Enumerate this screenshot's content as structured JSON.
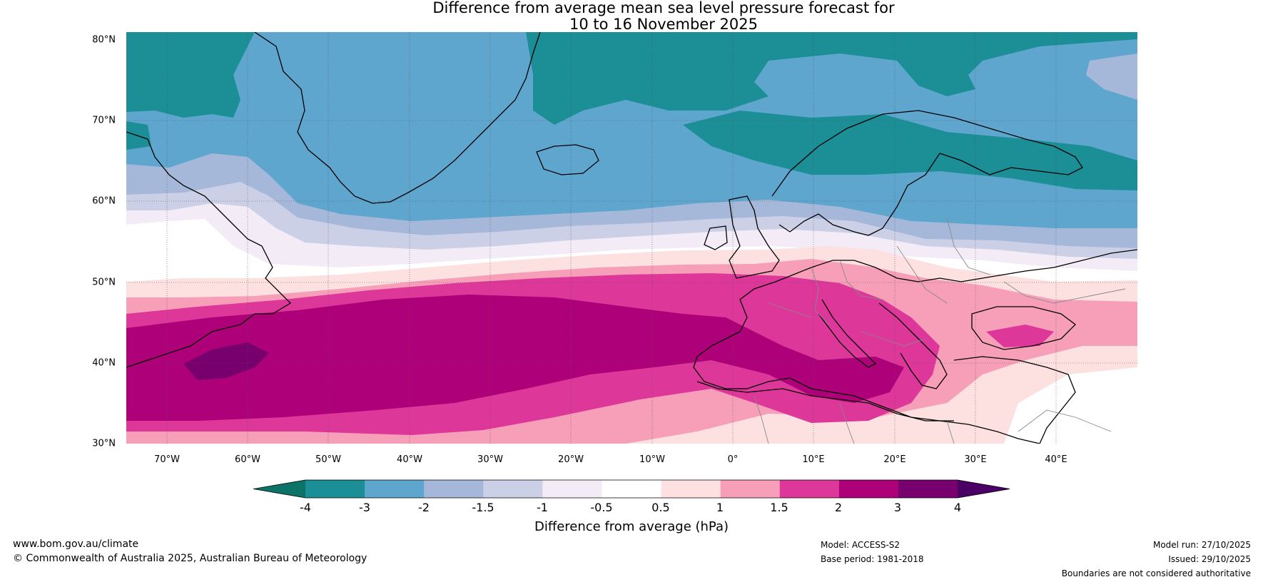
{
  "title": {
    "line1": "Difference from average mean sea level pressure forecast for",
    "line2": "10 to 16 November 2025"
  },
  "map": {
    "lat_ticks": [
      "80°N",
      "70°N",
      "60°N",
      "50°N",
      "40°N",
      "30°N"
    ],
    "lon_ticks": [
      "70°W",
      "60°W",
      "50°W",
      "40°W",
      "30°W",
      "20°W",
      "10°W",
      "0°",
      "10°E",
      "20°E",
      "30°E",
      "40°E"
    ],
    "lat_range": [
      30,
      80
    ],
    "lon_range": [
      -75,
      50
    ]
  },
  "colorbar": {
    "title": "Difference from average (hPa)",
    "labels": [
      "-4",
      "-3",
      "-2",
      "-1.5",
      "-1",
      "-0.5",
      "0.5",
      "1",
      "1.5",
      "2",
      "3",
      "4"
    ],
    "colors": {
      "below_min": "#0b7466",
      "bins": [
        "#1b8e96",
        "#5fa6cf",
        "#a6b8da",
        "#ccd0e6",
        "#f3ecf6",
        "#ffffff",
        "#fde0e0",
        "#f79fb9",
        "#dd379a",
        "#ae0078",
        "#77006e"
      ],
      "above_max": "#4a0064"
    }
  },
  "footer": {
    "website": "www.bom.gov.au/climate",
    "copyright": "© Commonwealth of Australia 2025, Australian Bureau of Meteorology",
    "model": "Model: ACCESS-S2",
    "base_period": "Base period: 1981-2018",
    "model_run": "Model run: 27/10/2025",
    "issued": "Issued: 29/10/2025",
    "disclaimer": "Boundaries are not considered authoritative"
  }
}
